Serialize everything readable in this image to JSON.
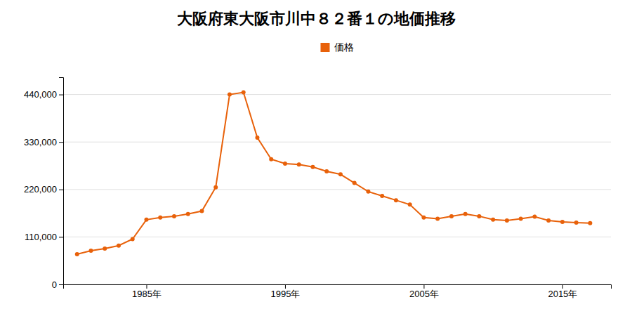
{
  "chart_data": {
    "type": "line",
    "title": "大阪府東大阪市川中８２番１の地価推移",
    "x": [
      1980,
      1981,
      1982,
      1983,
      1984,
      1985,
      1986,
      1987,
      1988,
      1989,
      1990,
      1991,
      1992,
      1993,
      1994,
      1995,
      1996,
      1997,
      1998,
      1999,
      2000,
      2001,
      2002,
      2003,
      2004,
      2005,
      2006,
      2007,
      2008,
      2009,
      2010,
      2011,
      2012,
      2013,
      2014,
      2015,
      2016,
      2017
    ],
    "series": [
      {
        "name": "価格",
        "color": "#E8610A",
        "marker": "circle",
        "values": [
          70000,
          78000,
          83000,
          90000,
          105000,
          150000,
          155000,
          158000,
          163000,
          170000,
          225000,
          440000,
          445000,
          340000,
          290000,
          280000,
          278000,
          272000,
          262000,
          255000,
          235000,
          215000,
          205000,
          195000,
          185000,
          155000,
          152000,
          158000,
          163000,
          158000,
          150000,
          148000,
          152000,
          157000,
          148000,
          145000,
          143000,
          142000
        ]
      }
    ],
    "xlim": [
      1979,
      2018.5
    ],
    "xticks": [
      {
        "value": 1985,
        "label": "1985年"
      },
      {
        "value": 1995,
        "label": "1995年"
      },
      {
        "value": 2005,
        "label": "2005年"
      },
      {
        "value": 2015,
        "label": "2015年"
      }
    ],
    "ylim": [
      0,
      480000
    ],
    "yticks": [
      0,
      {
        "value": 110000,
        "label": "110,000"
      },
      {
        "value": 220000,
        "label": "220,000"
      },
      {
        "value": 330000,
        "label": "330,000"
      },
      {
        "value": 440000,
        "label": "440,000"
      }
    ],
    "grid": true,
    "legend": "top"
  }
}
